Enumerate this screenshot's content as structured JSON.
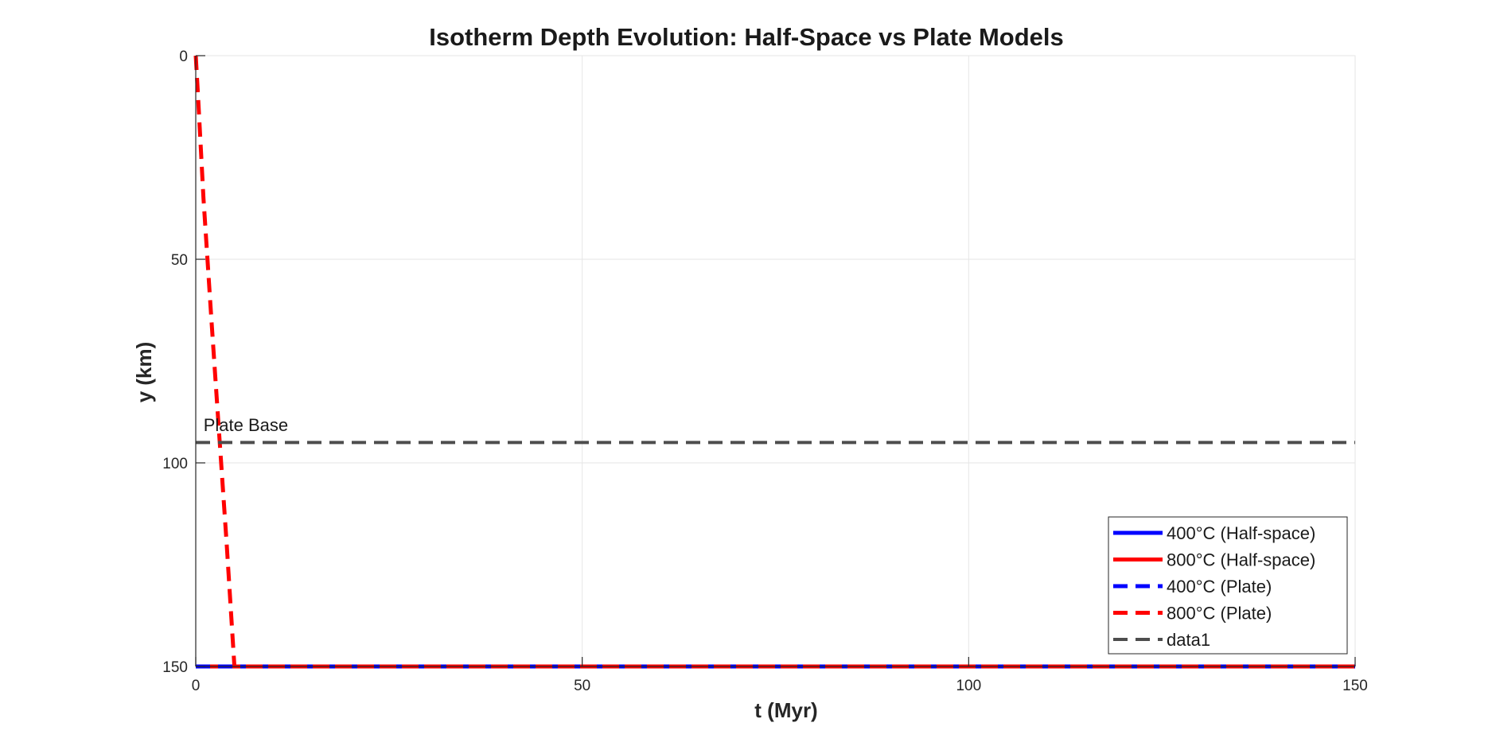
{
  "chart_data": {
    "type": "line",
    "title": "Isotherm Depth Evolution: Half-Space vs Plate Models",
    "xlabel": "t (Myr)",
    "ylabel": "y (km)",
    "xlim": [
      0,
      150
    ],
    "ylim": [
      0,
      150
    ],
    "y_reversed": true,
    "grid": true,
    "x_ticks": [
      0,
      50,
      100,
      150
    ],
    "y_ticks": [
      0,
      50,
      100,
      150
    ],
    "legend_position": "bottom-right",
    "series": [
      {
        "name": "400°C (Half-space)",
        "color": "#0000ff",
        "dash": "solid",
        "x": [
          0,
          150
        ],
        "y": [
          150,
          150
        ]
      },
      {
        "name": "800°C (Half-space)",
        "color": "#ff0000",
        "dash": "solid",
        "x": [
          0,
          5,
          150
        ],
        "y": [
          150,
          150,
          150
        ]
      },
      {
        "name": "400°C (Plate)",
        "color": "#0000ff",
        "dash": "dashed",
        "x": [
          0,
          150
        ],
        "y": [
          150,
          150
        ]
      },
      {
        "name": "800°C (Plate)",
        "color": "#ff0000",
        "dash": "dashed",
        "x": [
          0,
          0.3,
          1,
          2,
          3,
          4,
          5,
          150
        ],
        "y": [
          0,
          10,
          35,
          64,
          92,
          120,
          150,
          150
        ]
      },
      {
        "name": "data1",
        "color": "#4d4d4d",
        "dash": "dashed",
        "x": [
          0,
          150
        ],
        "y": [
          95,
          95
        ]
      }
    ],
    "annotations": [
      {
        "text": "Plate Base",
        "x": 1,
        "y": 91
      }
    ]
  }
}
